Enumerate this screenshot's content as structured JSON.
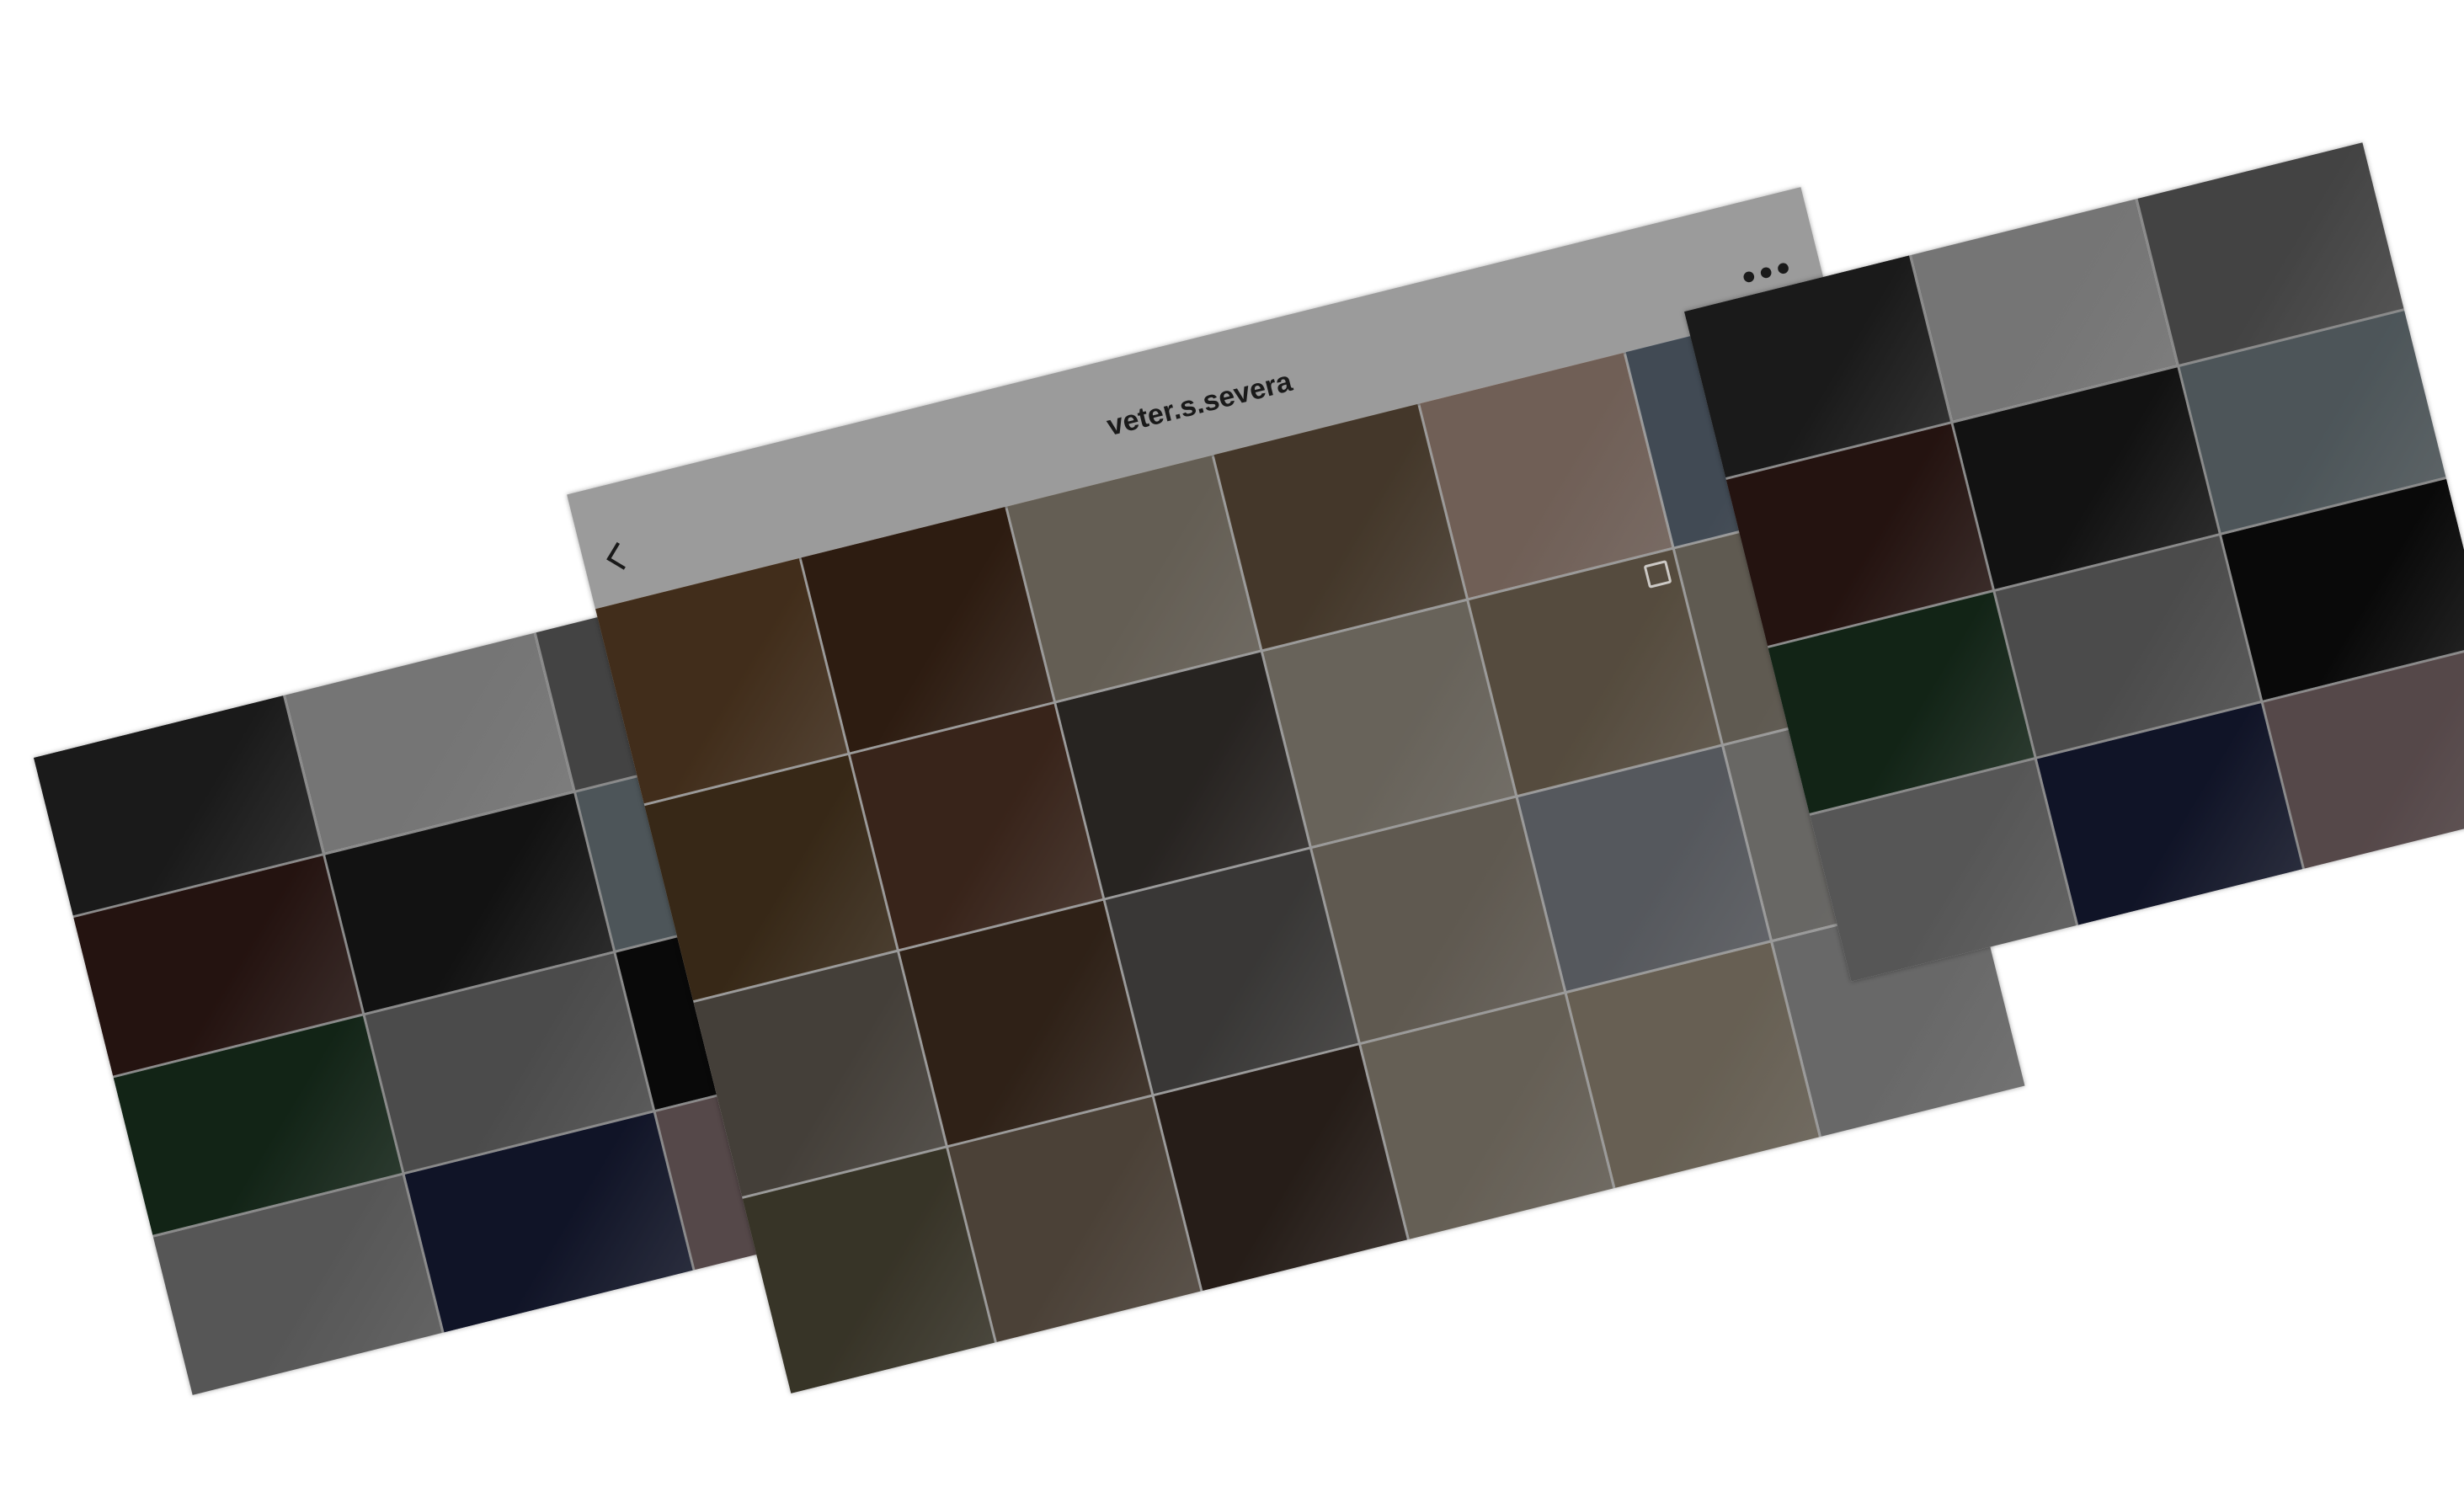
{
  "header": {
    "username": "veter.s.severa",
    "more_glyph": "•••",
    "back_icon": "chevron-left-icon",
    "more_icon": "more-horizontal-icon"
  },
  "colors": {
    "overlay": "#000000",
    "header_bg": "#9b9b9b",
    "header_text": "#1a1a1a"
  },
  "feeds": {
    "left": [
      {
        "name": "hand-closeup-bw-photo",
        "color": "#2a2a2a"
      },
      {
        "name": "chair-plant-studio-photo",
        "color": "#bdbdbd"
      },
      {
        "name": "repeated-portrait-bw-photo",
        "color": "#6d6d6d"
      },
      {
        "name": "concert-crowd-photo",
        "color": "#3b1f1a"
      },
      {
        "name": "woman-portrait-bw-photo",
        "color": "#1e1e1e"
      },
      {
        "name": "man-selfie-photo",
        "color": "#7c8a90"
      },
      {
        "name": "flowers-green-lights-photo",
        "color": "#1d3a24"
      },
      {
        "name": "lying-man-bw-photo",
        "color": "#7a7a7a"
      },
      {
        "name": "woman-dark-dress-photo",
        "color": "#0f0f0f"
      },
      {
        "name": "couple-bw-photo",
        "color": "#8c8c8c"
      },
      {
        "name": "woman-blue-wall-photo",
        "color": "#1b2140"
      },
      {
        "name": "girl-hand-face-photo",
        "color": "#8a7476"
      }
    ],
    "middle": [
      {
        "name": "autumn-forest-fern-photo",
        "color": "#6a4a2c",
        "badge": false
      },
      {
        "name": "coffee-lights-flatlay-photo",
        "color": "#4a2e1c",
        "badge": false
      },
      {
        "name": "camera-books-photo",
        "color": "#a29888",
        "badge": false
      },
      {
        "name": "daisies-face-photo",
        "color": "#6e5a44",
        "badge": false
      },
      {
        "name": "rings-perfume-photo",
        "color": "#b59a8c",
        "badge": false
      },
      {
        "name": "jeans-pocket-photo",
        "color": "#6a7888",
        "badge": false
      },
      {
        "name": "sunflowers-photo",
        "color": "#5a4226",
        "badge": false
      },
      {
        "name": "tea-book-flatlay-photo",
        "color": "#5b3a2a",
        "badge": false
      },
      {
        "name": "cocoa-marshmallow-photo",
        "color": "#403a36",
        "badge": false
      },
      {
        "name": "glass-pearls-photo",
        "color": "#a8a092",
        "badge": false
      },
      {
        "name": "necklace-neckline-photo",
        "color": "#8a7a64",
        "badge": true
      },
      {
        "name": "tea-cup-window-photo",
        "color": "#9a9284",
        "badge": false
      },
      {
        "name": "vintage-camera-cup-photo",
        "color": "#6e665c",
        "badge": false
      },
      {
        "name": "forest-camera-hands-photo",
        "color": "#4c3626",
        "badge": false
      },
      {
        "name": "checked-dress-photo",
        "color": "#5c5a58",
        "badge": false
      },
      {
        "name": "bathrobe-woman-photo",
        "color": "#9a9082",
        "badge": false
      },
      {
        "name": "shirt-flatlay-photo",
        "color": "#8a8e96",
        "badge": false
      },
      {
        "name": "glass-jug-photo",
        "color": "#a8a6a2",
        "badge": false
      },
      {
        "name": "daisies-field-photo",
        "color": "#5a5440",
        "badge": false
      },
      {
        "name": "dried-flowers-camera-photo",
        "color": "#7a6a5a",
        "badge": false
      },
      {
        "name": "writing-hands-photo",
        "color": "#3e3028",
        "badge": false
      },
      {
        "name": "plant-dresser-photo",
        "color": "#a49a8a",
        "badge": false
      },
      {
        "name": "gold-jewelry-photo",
        "color": "#a69a86",
        "badge": false
      },
      {
        "name": "branch-bed-photo",
        "color": "#a8a8a8",
        "badge": true
      }
    ],
    "right": [
      {
        "name": "hand-closeup-bw-photo",
        "color": "#2a2a2a"
      },
      {
        "name": "chair-plant-studio-photo",
        "color": "#bdbdbd"
      },
      {
        "name": "repeated-portrait-bw-photo",
        "color": "#6d6d6d"
      },
      {
        "name": "concert-crowd-photo",
        "color": "#3b1f1a"
      },
      {
        "name": "woman-portrait-bw-photo",
        "color": "#1e1e1e"
      },
      {
        "name": "man-selfie-photo",
        "color": "#7c8a90"
      },
      {
        "name": "flowers-green-lights-photo",
        "color": "#1d3a24"
      },
      {
        "name": "lying-man-bw-photo",
        "color": "#7a7a7a"
      },
      {
        "name": "woman-dark-dress-photo",
        "color": "#0f0f0f"
      },
      {
        "name": "couple-bw-photo",
        "color": "#8c8c8c"
      },
      {
        "name": "woman-blue-wall-photo",
        "color": "#1b2140"
      },
      {
        "name": "girl-hand-face-photo",
        "color": "#8a7476"
      }
    ]
  }
}
